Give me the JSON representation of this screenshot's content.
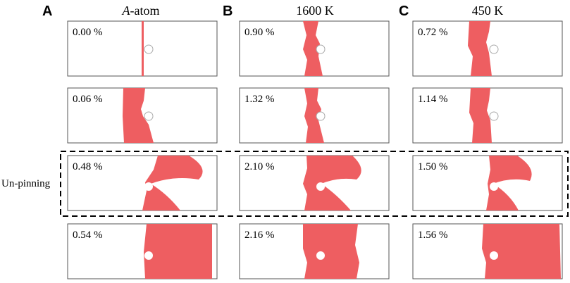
{
  "panels": [
    {
      "letter": "A",
      "title_italic": "A",
      "title_rest": "-atom",
      "frames": [
        "0.00 %",
        "0.06 %",
        "0.48 %",
        "0.54 %"
      ]
    },
    {
      "letter": "B",
      "title_italic": "",
      "title_rest": "1600 K",
      "frames": [
        "0.90 %",
        "1.32 %",
        "2.10 %",
        "2.16 %"
      ]
    },
    {
      "letter": "C",
      "title_italic": "",
      "title_rest": "450 K",
      "frames": [
        "0.72 %",
        "1.14 %",
        "1.50 %",
        "1.56 %"
      ]
    }
  ],
  "annotation": "Un-pinning"
}
